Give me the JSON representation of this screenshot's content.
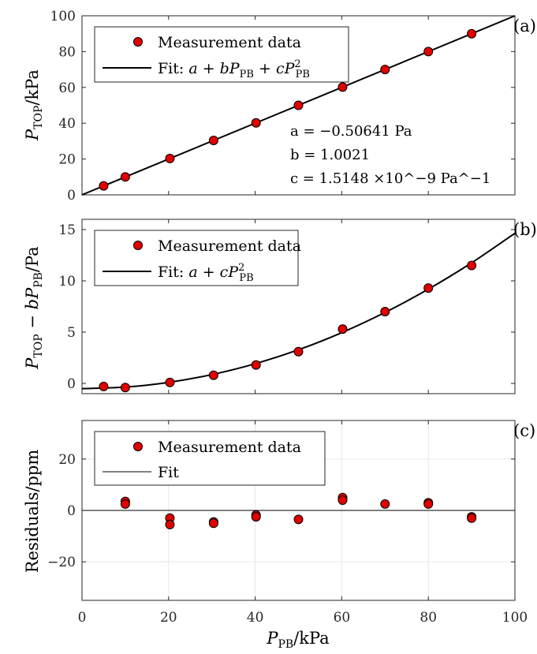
{
  "chart_data": [
    {
      "type": "scatter",
      "panel_label": "(a)",
      "ylabel": "P_TOP/kPa",
      "xlim": [
        0,
        100
      ],
      "ylim": [
        0,
        100
      ],
      "xticks": [
        0,
        20,
        40,
        60,
        80,
        100
      ],
      "yticks": [
        0,
        20,
        40,
        60,
        80,
        100
      ],
      "grid": false,
      "legend_position": "top-left",
      "series": [
        {
          "name": "Measurement data",
          "kind": "markers",
          "x": [
            5,
            10,
            20.3,
            30.4,
            40.2,
            50,
            60.2,
            70,
            80,
            90
          ],
          "y": [
            5,
            10,
            20.3,
            30.4,
            40.2,
            50,
            60.2,
            70,
            80,
            90
          ]
        },
        {
          "name": "Fit: a + bP_PB + cP_PB^2",
          "kind": "line",
          "x": [
            0,
            100
          ],
          "y": [
            0,
            100
          ]
        }
      ],
      "annotations": [
        "a = −0.50641 Pa",
        "b = 1.0021",
        "c = 1.5148 ×10^−9 Pa^−1"
      ]
    },
    {
      "type": "scatter",
      "panel_label": "(b)",
      "ylabel": "P_TOP − bP_PB/Pa",
      "xlim": [
        0,
        100
      ],
      "ylim": [
        -1,
        16
      ],
      "xticks": [
        0,
        20,
        40,
        60,
        80,
        100
      ],
      "yticks": [
        0,
        5,
        10,
        15
      ],
      "grid": false,
      "legend_position": "top-left",
      "series": [
        {
          "name": "Measurement data",
          "kind": "markers",
          "x": [
            5,
            10,
            20.3,
            30.4,
            40.2,
            50,
            60.2,
            70,
            80,
            90
          ],
          "y": [
            -0.3,
            -0.4,
            0.1,
            0.8,
            1.8,
            3.1,
            5.3,
            7.0,
            9.3,
            11.5
          ]
        },
        {
          "name": "Fit: a + cP_PB^2",
          "kind": "line",
          "x": [
            0,
            10,
            20,
            30,
            40,
            50,
            60,
            70,
            80,
            90,
            100
          ],
          "y": [
            -0.51,
            -0.36,
            0.1,
            0.86,
            1.92,
            3.28,
            4.95,
            6.92,
            9.19,
            11.76,
            14.64
          ]
        }
      ]
    },
    {
      "type": "scatter",
      "panel_label": "(c)",
      "ylabel": "Residuals/ppm",
      "xlabel": "P_PB/kPa",
      "xlim": [
        0,
        100
      ],
      "ylim": [
        -35,
        35
      ],
      "xticks": [
        0,
        20,
        40,
        60,
        80,
        100
      ],
      "yticks": [
        -20,
        0,
        20
      ],
      "grid": true,
      "legend_position": "top-left",
      "series": [
        {
          "name": "Measurement data",
          "kind": "markers",
          "x": [
            10,
            10,
            20.3,
            20.3,
            30.4,
            30.4,
            40.2,
            40.2,
            50,
            60.2,
            60.2,
            70,
            80,
            80,
            90,
            90
          ],
          "y": [
            3.5,
            2.5,
            -3,
            -5.5,
            -4.5,
            -5,
            -1.8,
            -2.5,
            -3.5,
            5,
            4,
            2.5,
            3,
            2.5,
            -2.5,
            -3
          ]
        },
        {
          "name": "Fit",
          "kind": "line",
          "x": [
            0,
            100
          ],
          "y": [
            0,
            0
          ]
        }
      ]
    }
  ]
}
